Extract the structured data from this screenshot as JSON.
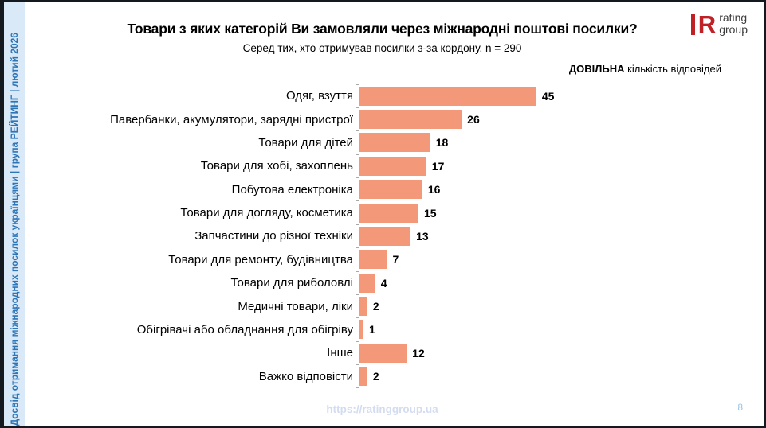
{
  "sidebar": {
    "text": "Досвід отримання міжнародних посилок українцями  |  група РЕЙТИНГ  |  лютий 2026"
  },
  "header": {
    "title": "Товари з яких категорій Ви замовляли через міжнародні поштові посилки?",
    "subtitle": "Серед тих, хто отримував посилки з-за кордону, n = 290",
    "note_bold": "ДОВІЛЬНА",
    "note_rest": " кількість відповідей"
  },
  "logo": {
    "mark": "R",
    "line1": "rating",
    "line2": "group"
  },
  "footer": {
    "url": "https://ratinggroup.ua",
    "page": "8"
  },
  "colors": {
    "bar": "#f4987a",
    "sidebar_bg": "#d9e9f8",
    "sidebar_text": "#2e75b6",
    "logo_red": "#c02127",
    "axis": "#a9a9a9",
    "footer_url": "#d3dcf0",
    "page_num": "#9dc3e6",
    "frame": "#14181f"
  },
  "chart_data": {
    "type": "bar",
    "orientation": "horizontal",
    "title": "Товари з яких категорій Ви замовляли через міжнародні поштові посилки?",
    "subtitle": "Серед тих, хто отримував посилки з-за кордону, n = 290",
    "annotation": "ДОВІЛЬНА кількість відповідей",
    "categories": [
      "Одяг, взуття",
      "Павербанки, акумулятори, зарядні пристрої",
      "Товари для дітей",
      "Товари для хобі, захоплень",
      "Побутова електроніка",
      "Товари для догляду, косметика",
      "Запчастини до різної техніки",
      "Товари для ремонту, будівництва",
      "Товари для риболовлі",
      "Медичні товари, ліки",
      "Обігрівачі або обладнання для обігріву",
      "Інше",
      "Важко відповісти"
    ],
    "values": [
      45,
      26,
      18,
      17,
      16,
      15,
      13,
      7,
      4,
      2,
      1,
      12,
      2
    ],
    "value_labels_shown": true,
    "grid": false,
    "legend_position": "none",
    "xlabel": "",
    "ylabel": ""
  }
}
